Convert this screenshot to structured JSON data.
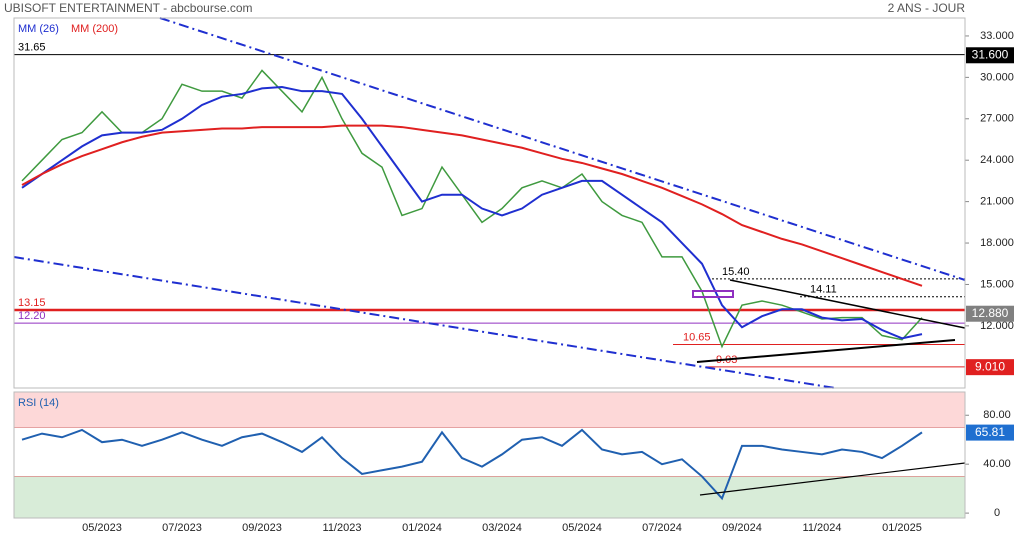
{
  "chart_data": [
    {
      "type": "line",
      "title": "UBISOFT ENTERTAINMENT - abcbourse.com",
      "subtitle": "2 ANS - JOUR",
      "categories": [
        null,
        null,
        null,
        null,
        "05/2023",
        null,
        null,
        null,
        "07/2023",
        null,
        null,
        null,
        "09/2023",
        null,
        null,
        null,
        "11/2023",
        null,
        null,
        null,
        "01/2024",
        null,
        null,
        null,
        "03/2024",
        null,
        null,
        null,
        "05/2024",
        null,
        null,
        null,
        "07/2024",
        null,
        null,
        null,
        "09/2024",
        null,
        null,
        null,
        "11/2024",
        null,
        null,
        null,
        "01/2025",
        null
      ],
      "series": [
        {
          "color": "#3f9a3f",
          "values": [
            22.5,
            24,
            25.5,
            26,
            27.5,
            26,
            26,
            27,
            29.5,
            29,
            29,
            28.5,
            30.5,
            29,
            27.5,
            30,
            27,
            24.5,
            23.5,
            20,
            20.5,
            23.5,
            21.5,
            19.5,
            20.5,
            22,
            22.5,
            22,
            23,
            21,
            20,
            19.5,
            17,
            17,
            14.5,
            10.5,
            13.5,
            13.8,
            13.5,
            13,
            12.5,
            12.6,
            12.6,
            11.3,
            11,
            12.6
          ]
        },
        {
          "name": "MM (26)",
          "color": "#1f2fd0",
          "values": [
            22,
            23,
            24,
            25,
            25.8,
            26,
            26,
            26.2,
            27,
            28,
            28.6,
            28.8,
            29.2,
            29.3,
            29,
            29,
            28.8,
            27,
            25,
            23,
            21,
            21.5,
            21.5,
            20.5,
            20,
            20.5,
            21.5,
            22,
            22.5,
            22.5,
            21.5,
            20.5,
            19.5,
            18,
            16.5,
            13.5,
            11.9,
            12.7,
            13.2,
            13.2,
            12.6,
            12.4,
            12.5,
            11.7,
            11.1,
            11.4
          ]
        },
        {
          "name": "MM (200)",
          "color": "#e02020",
          "values": [
            22.2,
            23,
            23.7,
            24.3,
            24.8,
            25.3,
            25.7,
            26,
            26.1,
            26.2,
            26.3,
            26.3,
            26.4,
            26.4,
            26.4,
            26.4,
            26.5,
            26.5,
            26.5,
            26.4,
            26.2,
            26,
            25.8,
            25.5,
            25.2,
            24.9,
            24.5,
            24.1,
            23.8,
            23.4,
            23,
            22.5,
            22,
            21.4,
            20.8,
            20.1,
            19.3,
            18.8,
            18.3,
            17.9,
            17.4,
            16.9,
            16.4,
            15.9,
            15.4,
            14.9
          ]
        }
      ],
      "levels": [
        {
          "value": 31.65,
          "label": "31.65",
          "color": "#000000"
        },
        {
          "value": 13.15,
          "label": "13.15",
          "color": "#e02020"
        },
        {
          "value": 12.2,
          "label": "12.20",
          "color": "#9030c0"
        },
        {
          "value": 15.4,
          "label": "15.40",
          "color": "#000000"
        },
        {
          "value": 14.11,
          "label": "14.11",
          "color": "#000000"
        },
        {
          "value": 10.65,
          "label": "10.65",
          "color": "#e02020"
        },
        {
          "value": 9.03,
          "label": "9.03",
          "color": "#e02020"
        }
      ],
      "tags": [
        {
          "value": 31.6,
          "label": "31.600",
          "color": "#000000"
        },
        {
          "value": 12.88,
          "label": "12.880",
          "color": "#808080"
        },
        {
          "value": 9.01,
          "label": "9.010",
          "color": "#e02020"
        }
      ],
      "ylim": [
        7.5,
        34.3
      ],
      "yticks": [
        {
          "value": 33,
          "label": "33.000"
        },
        {
          "value": 30,
          "label": "30.000"
        },
        {
          "value": 27,
          "label": "27.000"
        },
        {
          "value": 24,
          "label": "24.000"
        },
        {
          "value": 21,
          "label": "21.000"
        },
        {
          "value": 18,
          "label": "18.000"
        },
        {
          "value": 15,
          "label": "15.000"
        },
        {
          "value": 12,
          "label": "12.000"
        }
      ]
    },
    {
      "type": "line",
      "series": [
        {
          "name": "RSI (14)",
          "color": "#2060b0",
          "values": [
            60,
            65,
            62,
            68,
            58,
            60,
            55,
            60,
            66,
            60,
            55,
            62,
            65,
            58,
            50,
            62,
            45,
            32,
            35,
            38,
            42,
            66,
            45,
            38,
            48,
            60,
            62,
            55,
            68,
            52,
            48,
            50,
            40,
            44,
            30,
            12,
            55,
            55,
            52,
            50,
            48,
            52,
            50,
            45,
            55,
            66
          ]
        }
      ],
      "bands": [
        {
          "from": 70,
          "to": 99,
          "color": "#fdd8d8"
        },
        {
          "from": -4,
          "to": 30,
          "color": "#d8ecd8"
        }
      ],
      "tags": [
        {
          "value": 65.81,
          "label": "65.81",
          "color": "#1f6fd0"
        }
      ],
      "ylim": [
        -4,
        99
      ],
      "yticks": [
        {
          "value": 80,
          "label": "80.00"
        },
        {
          "value": 40,
          "label": "40.00"
        },
        0
      ]
    }
  ]
}
